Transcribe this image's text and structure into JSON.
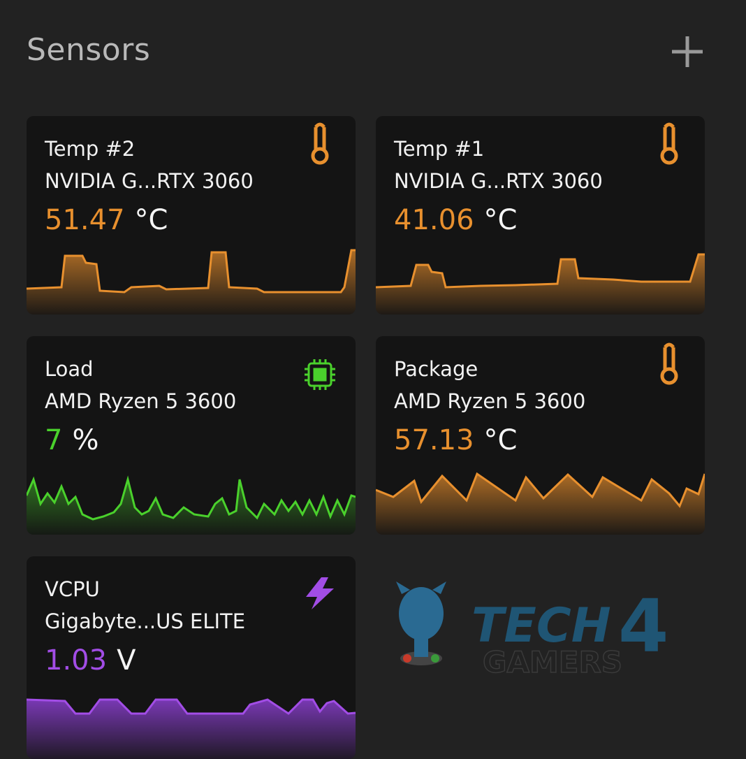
{
  "header": {
    "title": "Sensors"
  },
  "cards": [
    {
      "label": "Temp #2",
      "device": "NVIDIA G...RTX 3060",
      "value": "51.47",
      "unit": "°C"
    },
    {
      "label": "Temp #1",
      "device": "NVIDIA G...RTX 3060",
      "value": "41.06",
      "unit": "°C"
    },
    {
      "label": "Load",
      "device": "AMD Ryzen 5 3600",
      "value": "7",
      "unit": "%"
    },
    {
      "label": "Package",
      "device": "AMD Ryzen 5 3600",
      "value": "57.13",
      "unit": "°C"
    },
    {
      "label": "VCPU",
      "device": "Gigabyte...US ELITE",
      "value": "1.03",
      "unit": "V"
    }
  ],
  "watermark": {
    "brand": "TECH",
    "digit": "4",
    "sub": "GAMERS"
  }
}
